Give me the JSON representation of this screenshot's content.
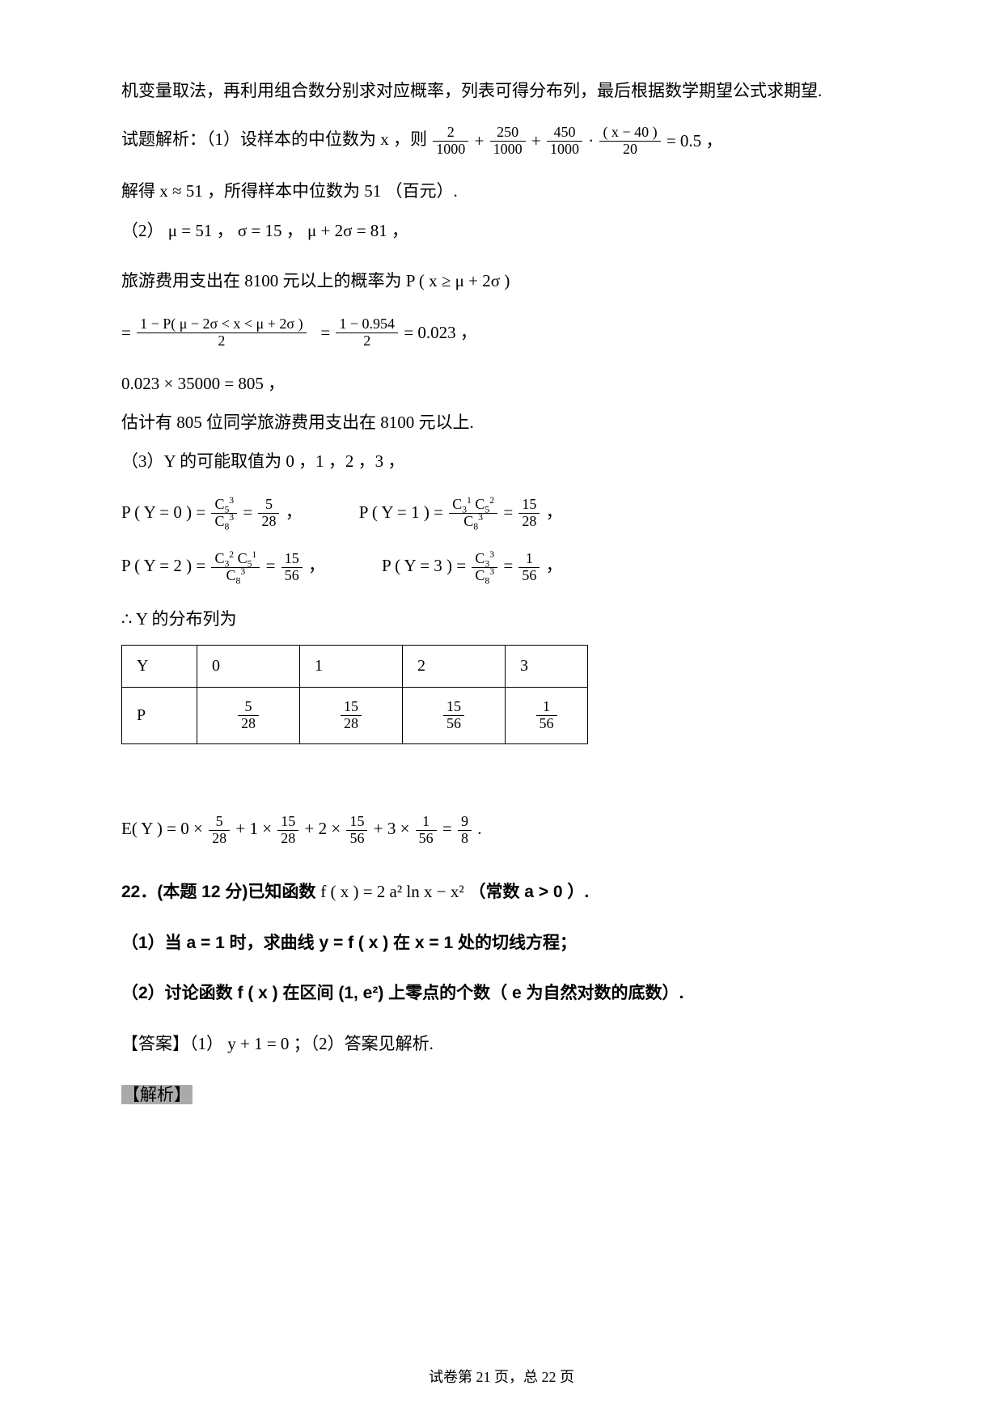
{
  "p1": "机变量取法，再利用组合数分别求对应概率，列表可得分布列，最后根据数学期望公式求期望.",
  "p2_pre": "试题解析：（1）设样本的中位数为 x ，则",
  "p2_eq_terms": {
    "a": "2",
    "b": "250",
    "c": "450",
    "d": "( x − 40 )",
    "den1": "1000",
    "den2": "20",
    "rhs": "= 0.5 ，"
  },
  "p3": "解得 x ≈ 51 ，所得样本中位数为 51 （百元）.",
  "p4": "（2） μ = 51 ， σ = 15 ， μ + 2σ = 81 ，",
  "p5": "旅游费用支出在 8100 元以上的概率为 P ( x ≥ μ + 2σ )",
  "p6_eq": {
    "num1": "1 − P( μ − 2σ < x < μ + 2σ )",
    "den1": "2",
    "num2": "1 − 0.954",
    "den2": "2",
    "rhs": " = 0.023 ，"
  },
  "p7": "0.023 × 35000 = 805 ，",
  "p8": "估计有 805 位同学旅游费用支出在 8100 元以上.",
  "p9": "（3）Y 的可能取值为 0 ，1 ，2 ，3 ，",
  "prob_rows": [
    {
      "lhs": "P ( Y = 0 ) =",
      "num": "C<sub>5</sub><sup>3</sup>",
      "den": "C<sub>8</sub><sup>3</sup>",
      "mid": " = ",
      "rnum": "5",
      "rden": "28",
      "tail": " ，",
      "lhs2": "P ( Y = 1 ) =",
      "num2": "C<sub>3</sub><sup>1</sup> C<sub>5</sub><sup>2</sup>",
      "den2": "C<sub>8</sub><sup>3</sup>",
      "rnum2": "15",
      "rden2": "28",
      "tail2": " ，"
    },
    {
      "lhs": "P ( Y = 2 ) =",
      "num": "C<sub>3</sub><sup>2</sup> C<sub>5</sub><sup>1</sup>",
      "den": "C<sub>8</sub><sup>3</sup>",
      "mid": " = ",
      "rnum": "15",
      "rden": "56",
      "tail": " ，",
      "lhs2": "P ( Y = 3 ) =",
      "num2": "C<sub>3</sub><sup>3</sup>",
      "den2": "C<sub>8</sub><sup>3</sup>",
      "rnum2": "1",
      "rden2": "56",
      "tail2": " ，"
    }
  ],
  "p10": "∴ Y 的分布列为",
  "dist_table": {
    "header": [
      "Y",
      "0",
      "1",
      "2",
      "3"
    ],
    "row_label": "P",
    "values": [
      {
        "num": "5",
        "den": "28"
      },
      {
        "num": "15",
        "den": "28"
      },
      {
        "num": "15",
        "den": "56"
      },
      {
        "num": "1",
        "den": "56"
      }
    ]
  },
  "p11_parts": {
    "pre": "E( Y ) = 0 × ",
    "f1n": "5",
    "f1d": "28",
    "m1": " + 1 × ",
    "f2n": "15",
    "f2d": "28",
    "m2": " + 2 × ",
    "f3n": "15",
    "f3d": "56",
    "m3": " + 3 × ",
    "f4n": "1",
    "f4d": "56",
    "m4": " = ",
    "f5n": "9",
    "f5d": "8",
    "tail": " ."
  },
  "q22": {
    "num": "22．",
    "pre": "(本题 12 分)已知函数 ",
    "fx": "f ( x ) = 2 a² ln x − x²",
    "post": " （常数 a > 0 ）."
  },
  "q22_1": {
    "pre": "（1）当 a = 1 时，求曲线 y =  f ( x ) 在 x = 1 处的切线方程；"
  },
  "q22_2": {
    "pre": "（2）讨论函数 f ( x ) 在区间 (1, e²) 上零点的个数（ e 为自然对数的底数）."
  },
  "ans": "【答案】（1） y + 1 = 0 ；（2）答案见解析.",
  "jiexi": "【解析】",
  "footer": "试卷第 21 页，总 22 页"
}
